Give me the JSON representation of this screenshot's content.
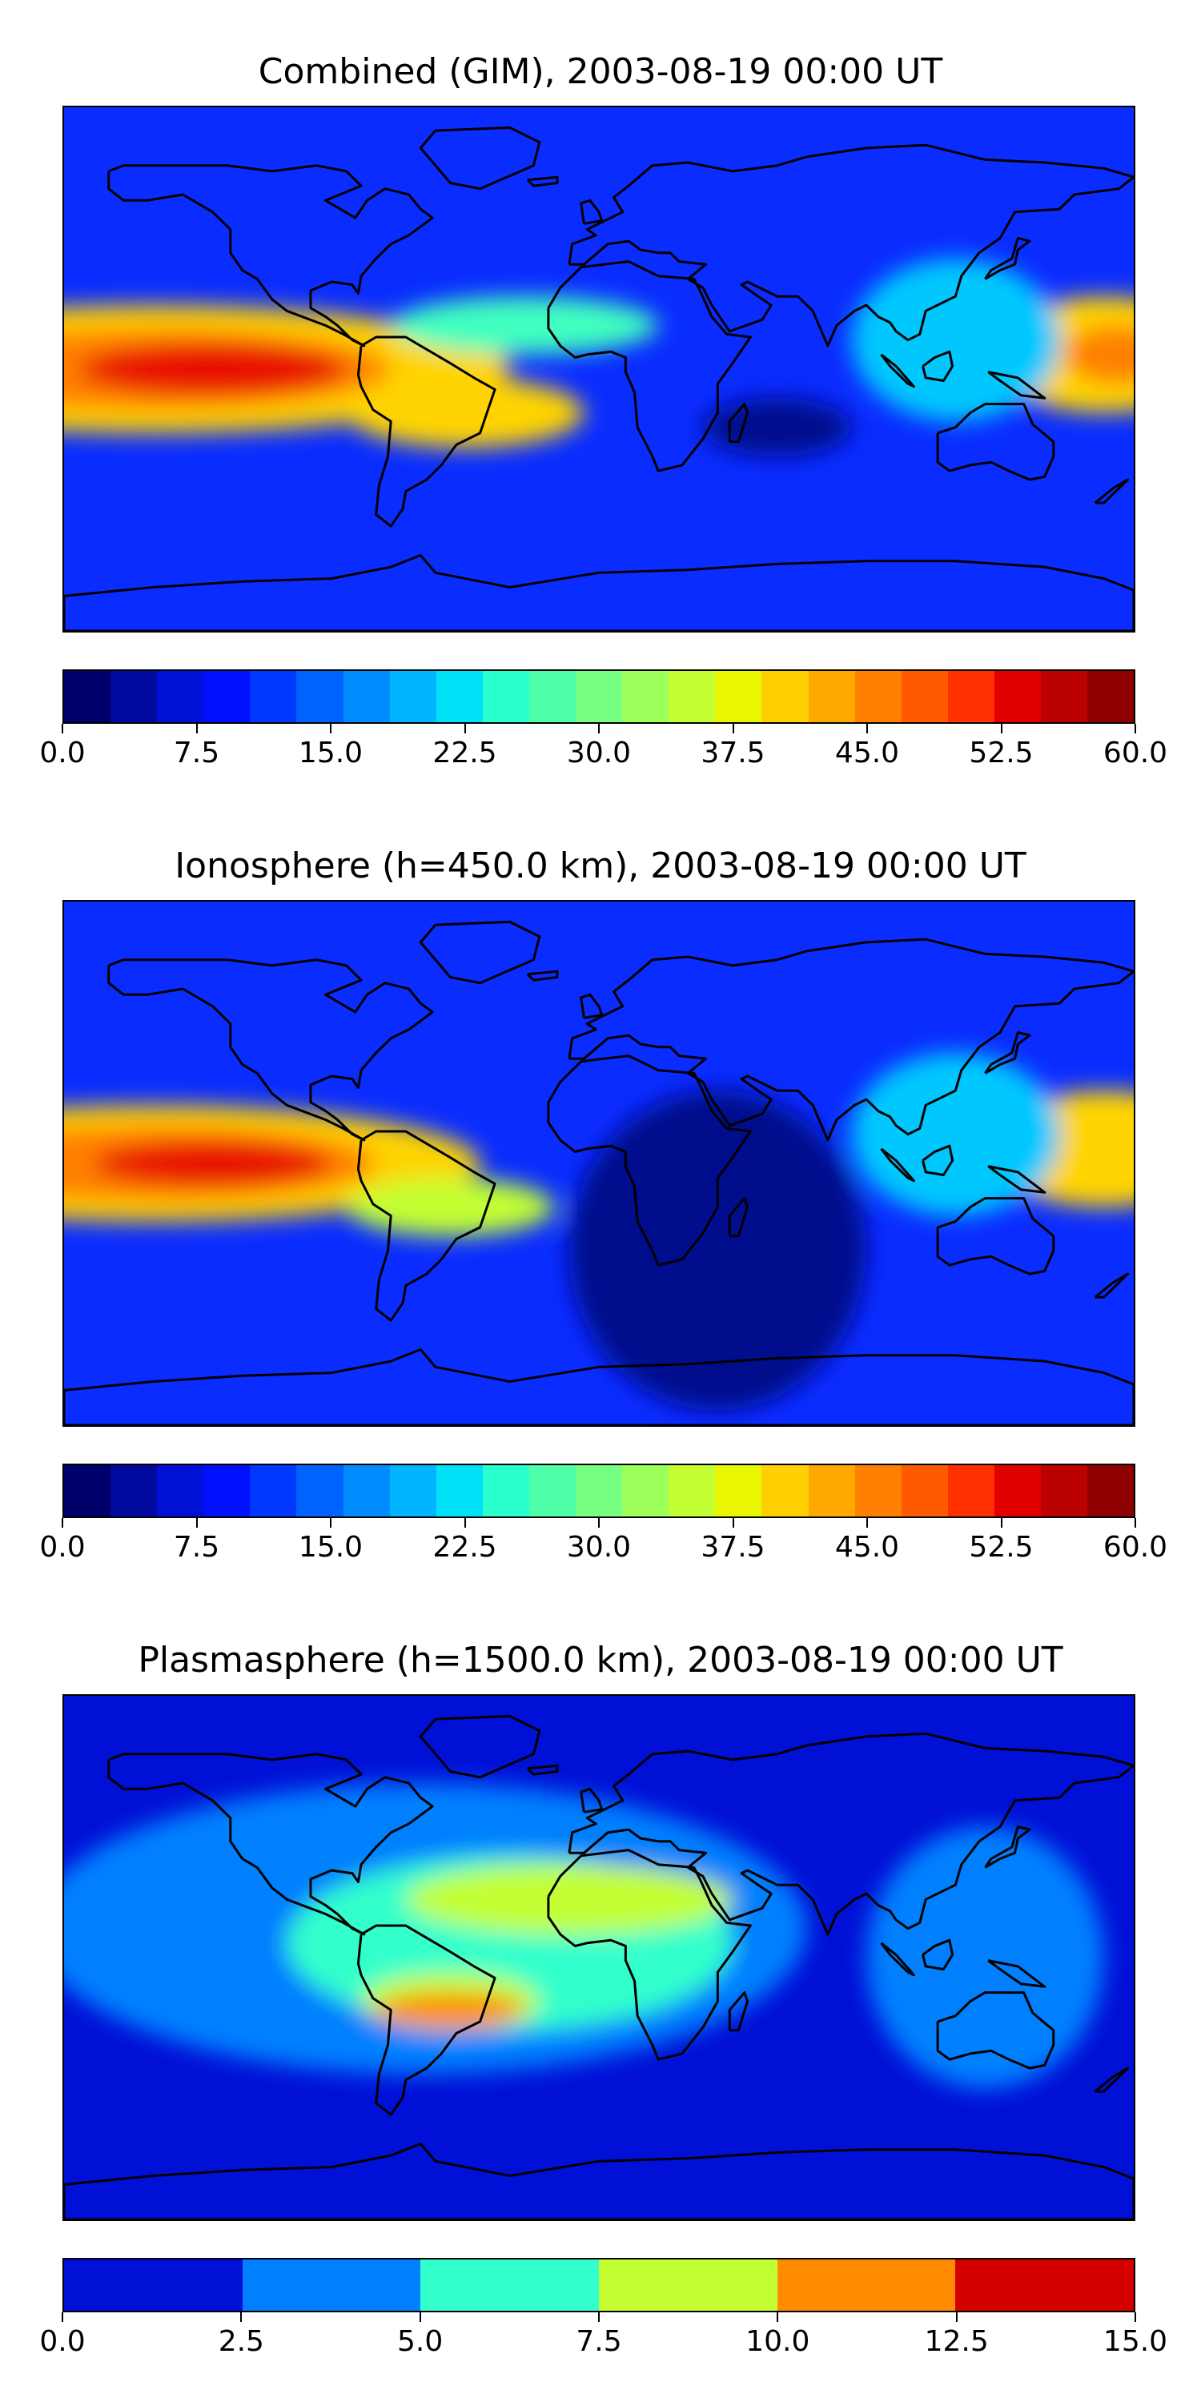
{
  "panels": [
    {
      "title": "Combined (GIM), 2003-08-19 00:00 UT",
      "map": {
        "base_color": "#0a2cff",
        "blobs": [
          {
            "lon": -150,
            "lat": 0,
            "rx": 120,
            "ry": 22,
            "color": "#ffd400"
          },
          {
            "lon": -150,
            "lat": 0,
            "rx": 80,
            "ry": 14,
            "color": "#ff8000"
          },
          {
            "lon": -130,
            "lat": 0,
            "rx": 45,
            "ry": 9,
            "color": "#e81000"
          },
          {
            "lon": 170,
            "lat": 5,
            "rx": 40,
            "ry": 20,
            "color": "#ffd400"
          },
          {
            "lon": 175,
            "lat": 5,
            "rx": 18,
            "ry": 10,
            "color": "#ff8000"
          },
          {
            "lon": -45,
            "lat": -15,
            "rx": 40,
            "ry": 12,
            "color": "#ffd400"
          },
          {
            "lon": -25,
            "lat": 15,
            "rx": 45,
            "ry": 10,
            "color": "#40ffc0"
          },
          {
            "lon": 120,
            "lat": 10,
            "rx": 35,
            "ry": 28,
            "color": "#00c8ff"
          },
          {
            "lon": 60,
            "lat": -20,
            "rx": 25,
            "ry": 10,
            "color": "#00118c"
          }
        ],
        "lon_range": [
          -180,
          180
        ],
        "lat_range": [
          -90,
          90
        ]
      },
      "colorbar": {
        "levels": [
          "#00006b",
          "#000a9e",
          "#0010d6",
          "#0010ff",
          "#0038ff",
          "#0063ff",
          "#008cff",
          "#00b4ff",
          "#00e0f7",
          "#29ffcf",
          "#4fffa8",
          "#76ff80",
          "#9cff5a",
          "#c3ff33",
          "#e9f700",
          "#ffd000",
          "#ffa900",
          "#ff8000",
          "#ff5a00",
          "#ff2f00",
          "#e00000",
          "#bb0000",
          "#8e0000"
        ],
        "tick_labels": [
          "0.0",
          "7.5",
          "15.0",
          "22.5",
          "30.0",
          "37.5",
          "45.0",
          "52.5",
          "60.0"
        ],
        "range": [
          0,
          60
        ]
      }
    },
    {
      "title": "Ionosphere  (h=450.0 km), 2003-08-19 00:00 UT",
      "map": {
        "base_color": "#0a2cff",
        "blobs": [
          {
            "lon": -150,
            "lat": 0,
            "rx": 110,
            "ry": 20,
            "color": "#ffd400"
          },
          {
            "lon": -150,
            "lat": 0,
            "rx": 75,
            "ry": 13,
            "color": "#ff8000"
          },
          {
            "lon": -130,
            "lat": 0,
            "rx": 40,
            "ry": 8,
            "color": "#e81000"
          },
          {
            "lon": 170,
            "lat": 5,
            "rx": 40,
            "ry": 20,
            "color": "#ffd400"
          },
          {
            "lon": -50,
            "lat": -15,
            "rx": 35,
            "ry": 10,
            "color": "#c3ff33"
          },
          {
            "lon": 40,
            "lat": -30,
            "rx": 50,
            "ry": 55,
            "color": "#00118c"
          },
          {
            "lon": 120,
            "lat": 10,
            "rx": 35,
            "ry": 28,
            "color": "#00c8ff"
          }
        ],
        "lon_range": [
          -180,
          180
        ],
        "lat_range": [
          -90,
          90
        ]
      },
      "colorbar": {
        "levels": [
          "#00006b",
          "#000a9e",
          "#0010d6",
          "#0010ff",
          "#0038ff",
          "#0063ff",
          "#008cff",
          "#00b4ff",
          "#00e0f7",
          "#29ffcf",
          "#4fffa8",
          "#76ff80",
          "#9cff5a",
          "#c3ff33",
          "#e9f700",
          "#ffd000",
          "#ffa900",
          "#ff8000",
          "#ff5a00",
          "#ff2f00",
          "#e00000",
          "#bb0000",
          "#8e0000"
        ],
        "tick_labels": [
          "0.0",
          "7.5",
          "15.0",
          "22.5",
          "30.0",
          "37.5",
          "45.0",
          "52.5",
          "60.0"
        ],
        "range": [
          0,
          60
        ]
      }
    },
    {
      "title": "Plasmasphere (h=1500.0 km), 2003-08-19 00:00 UT",
      "map": {
        "base_color": "#0010d6",
        "blobs": [
          {
            "lon": -60,
            "lat": 10,
            "rx": 130,
            "ry": 50,
            "color": "#0080ff"
          },
          {
            "lon": 130,
            "lat": 0,
            "rx": 40,
            "ry": 45,
            "color": "#0080ff"
          },
          {
            "lon": -30,
            "lat": 5,
            "rx": 75,
            "ry": 30,
            "color": "#33ffcc"
          },
          {
            "lon": -10,
            "lat": 20,
            "rx": 55,
            "ry": 12,
            "color": "#c3ff33"
          },
          {
            "lon": -50,
            "lat": -15,
            "rx": 30,
            "ry": 10,
            "color": "#c3ff33"
          },
          {
            "lon": -50,
            "lat": -18,
            "rx": 25,
            "ry": 6,
            "color": "#ff8c00"
          }
        ],
        "lon_range": [
          -180,
          180
        ],
        "lat_range": [
          -90,
          90
        ]
      },
      "colorbar": {
        "levels": [
          "#0010d6",
          "#0080ff",
          "#33ffcc",
          "#c3ff33",
          "#ff8c00",
          "#d40000"
        ],
        "tick_labels": [
          "0.0",
          "2.5",
          "5.0",
          "7.5",
          "10.0",
          "12.5",
          "15.0"
        ],
        "range": [
          0,
          15
        ]
      }
    }
  ]
}
